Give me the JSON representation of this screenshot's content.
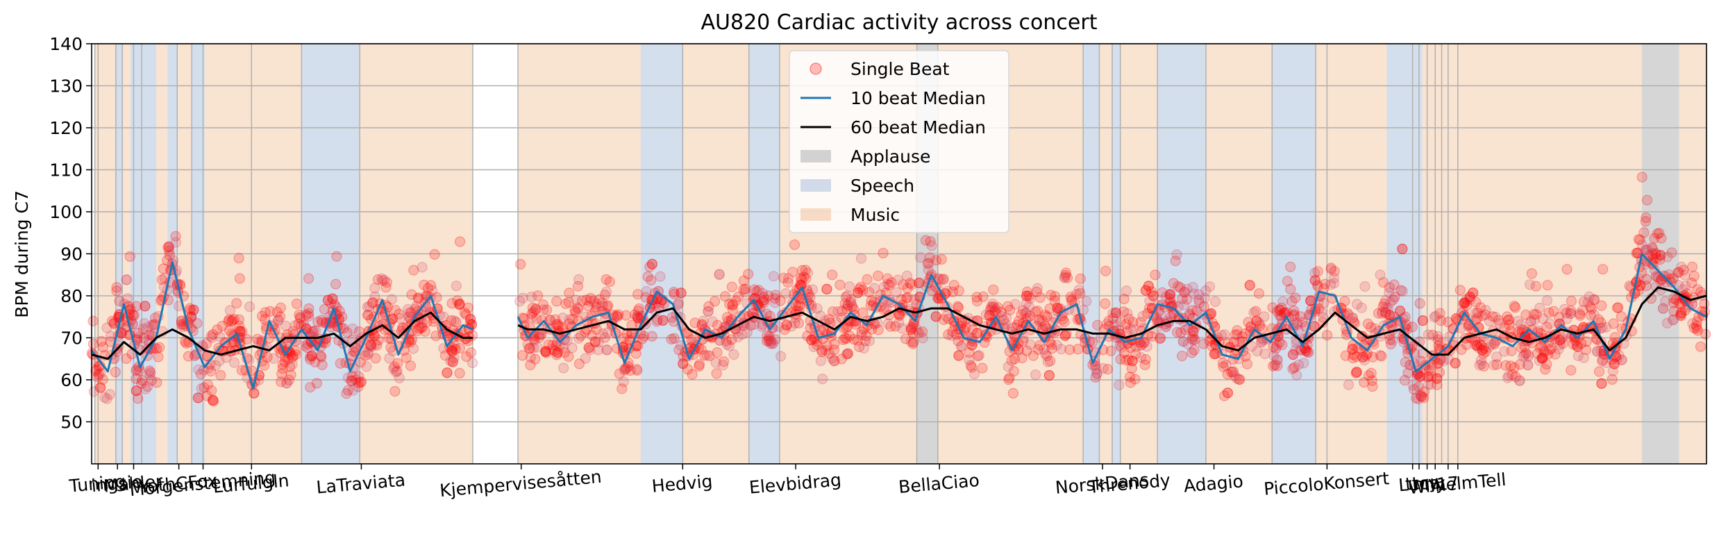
{
  "chart_data": {
    "type": "line",
    "title": "AU820 Cardiac activity across concert",
    "ylabel": "BPM during C7",
    "xlabel": "",
    "ylim": [
      40,
      140
    ],
    "xlim": [
      0,
      1000
    ],
    "yticks": [
      50,
      60,
      70,
      80,
      90,
      100,
      110,
      120,
      130,
      140
    ],
    "grid": true,
    "legend_position": "top-center",
    "colors": {
      "single_beat": "#ff0000",
      "median10": "#1f77b4",
      "median60": "#000000",
      "applause": "#c8c8c8",
      "speech": "#b0c4de",
      "music": "#f4c7a3"
    },
    "legend": [
      {
        "key": "single",
        "label": "Single Beat"
      },
      {
        "key": "median10",
        "label": "10 beat Median"
      },
      {
        "key": "median60",
        "label": "60 beat Median"
      },
      {
        "key": "applause",
        "label": "Applause"
      },
      {
        "key": "speech",
        "label": "Speech"
      },
      {
        "key": "music",
        "label": "Music"
      }
    ],
    "xtick_labels": [
      {
        "x": 4,
        "label": "Tuning"
      },
      {
        "x": 16,
        "label": "ingsie"
      },
      {
        "x": 26,
        "label": "Mahler"
      },
      {
        "x": 54,
        "label": "YothCFox"
      },
      {
        "x": 69,
        "label": "Morgenstemning"
      },
      {
        "x": 99,
        "label": "Lurfulgln"
      },
      {
        "x": 167,
        "label": "LaTraviata"
      },
      {
        "x": 266,
        "label": "Kjempervisesåtten"
      },
      {
        "x": 366,
        "label": "Hedvig"
      },
      {
        "x": 436,
        "label": "Elevbidrag"
      },
      {
        "x": 525,
        "label": "BellaCiao"
      },
      {
        "x": 626,
        "label": "NorskDans"
      },
      {
        "x": 643,
        "label": "Threnody"
      },
      {
        "x": 695,
        "label": "Adagio"
      },
      {
        "x": 765,
        "label": "PiccoloKonsert"
      },
      {
        "x": 818,
        "label": "tt"
      },
      {
        "x": 822,
        "label": "Lucy"
      },
      {
        "x": 827,
        "label": "ma"
      },
      {
        "x": 832,
        "label": "ny"
      },
      {
        "x": 840,
        "label": "17"
      },
      {
        "x": 846,
        "label": "WilhelmTell"
      }
    ],
    "regions": [
      {
        "type": "music",
        "start": 2,
        "end": 15
      },
      {
        "type": "speech",
        "start": 15,
        "end": 19
      },
      {
        "type": "music",
        "start": 19,
        "end": 24
      },
      {
        "type": "speech",
        "start": 24,
        "end": 40
      },
      {
        "type": "music",
        "start": 40,
        "end": 47
      },
      {
        "type": "speech",
        "start": 47,
        "end": 53
      },
      {
        "type": "music",
        "start": 53,
        "end": 62
      },
      {
        "type": "speech",
        "start": 62,
        "end": 70
      },
      {
        "type": "music",
        "start": 70,
        "end": 130
      },
      {
        "type": "speech",
        "start": 130,
        "end": 166
      },
      {
        "type": "music",
        "start": 166,
        "end": 236
      },
      {
        "type": "music",
        "start": 264,
        "end": 340
      },
      {
        "type": "speech",
        "start": 340,
        "end": 366
      },
      {
        "type": "music",
        "start": 366,
        "end": 407
      },
      {
        "type": "speech",
        "start": 407,
        "end": 426
      },
      {
        "type": "music",
        "start": 426,
        "end": 511
      },
      {
        "type": "applause",
        "start": 511,
        "end": 524
      },
      {
        "type": "music",
        "start": 524,
        "end": 614
      },
      {
        "type": "speech",
        "start": 614,
        "end": 624
      },
      {
        "type": "music",
        "start": 624,
        "end": 632
      },
      {
        "type": "speech",
        "start": 632,
        "end": 637
      },
      {
        "type": "music",
        "start": 637,
        "end": 660
      },
      {
        "type": "speech",
        "start": 660,
        "end": 690
      },
      {
        "type": "music",
        "start": 690,
        "end": 731
      },
      {
        "type": "speech",
        "start": 731,
        "end": 758
      },
      {
        "type": "music",
        "start": 758,
        "end": 802
      },
      {
        "type": "speech",
        "start": 802,
        "end": 824
      },
      {
        "type": "music",
        "start": 824,
        "end": 960
      },
      {
        "type": "applause",
        "start": 960,
        "end": 983
      },
      {
        "type": "music",
        "start": 983,
        "end": 1000
      }
    ],
    "vlines": [
      2,
      4,
      15,
      19,
      26,
      31,
      53,
      62,
      69,
      99,
      130,
      166,
      236,
      264,
      366,
      407,
      426,
      511,
      524,
      614,
      624,
      632,
      637,
      660,
      690,
      731,
      758,
      765,
      818,
      822,
      827,
      832,
      836,
      840,
      846
    ],
    "gaps": [
      [
        236,
        264
      ]
    ],
    "series": [
      {
        "name": "60 beat Median",
        "key": "median60",
        "x": [
          0,
          10,
          20,
          30,
          40,
          50,
          60,
          70,
          80,
          90,
          100,
          110,
          120,
          130,
          140,
          150,
          160,
          170,
          180,
          190,
          200,
          210,
          220,
          230,
          236,
          264,
          270,
          280,
          290,
          300,
          310,
          320,
          330,
          340,
          350,
          360,
          370,
          380,
          390,
          400,
          410,
          420,
          430,
          440,
          450,
          460,
          470,
          480,
          490,
          500,
          510,
          520,
          530,
          540,
          550,
          560,
          570,
          580,
          590,
          600,
          610,
          620,
          630,
          640,
          650,
          660,
          670,
          680,
          690,
          700,
          710,
          720,
          730,
          740,
          750,
          760,
          770,
          780,
          790,
          800,
          810,
          820,
          830,
          840,
          850,
          860,
          870,
          880,
          890,
          900,
          910,
          920,
          930,
          940,
          950,
          960,
          970,
          980,
          990,
          1000
        ],
        "values": [
          66,
          65,
          69,
          66,
          70,
          72,
          70,
          67,
          66,
          67,
          68,
          67,
          70,
          70,
          70,
          71,
          68,
          71,
          73,
          70,
          74,
          76,
          72,
          70,
          70,
          73,
          72,
          72,
          71,
          72,
          73,
          74,
          72,
          72,
          76,
          77,
          72,
          70,
          71,
          73,
          75,
          74,
          75,
          76,
          74,
          72,
          75,
          74,
          75,
          77,
          76,
          77,
          77,
          75,
          73,
          72,
          71,
          72,
          71,
          72,
          72,
          71,
          71,
          70,
          71,
          73,
          74,
          74,
          72,
          68,
          67,
          70,
          71,
          72,
          69,
          72,
          76,
          73,
          70,
          71,
          72,
          69,
          66,
          66,
          70,
          71,
          72,
          70,
          69,
          70,
          72,
          71,
          72,
          67,
          70,
          78,
          82,
          81,
          79,
          80
        ]
      },
      {
        "name": "10 beat Median",
        "key": "median10",
        "x": [
          0,
          10,
          20,
          30,
          40,
          50,
          60,
          70,
          80,
          90,
          100,
          110,
          120,
          130,
          140,
          150,
          160,
          170,
          180,
          190,
          200,
          210,
          220,
          230,
          236,
          264,
          270,
          280,
          290,
          300,
          310,
          320,
          330,
          340,
          350,
          360,
          370,
          380,
          390,
          400,
          410,
          420,
          430,
          440,
          450,
          460,
          470,
          480,
          490,
          500,
          510,
          520,
          530,
          540,
          550,
          560,
          570,
          580,
          590,
          600,
          610,
          620,
          630,
          640,
          650,
          660,
          670,
          680,
          690,
          700,
          710,
          720,
          730,
          740,
          750,
          760,
          770,
          780,
          790,
          800,
          810,
          820,
          830,
          840,
          850,
          860,
          870,
          880,
          890,
          900,
          910,
          920,
          930,
          940,
          950,
          960,
          970,
          980,
          990,
          1000
        ],
        "values": [
          67,
          62,
          78,
          63,
          70,
          88,
          72,
          63,
          68,
          71,
          58,
          74,
          66,
          72,
          67,
          77,
          62,
          70,
          79,
          66,
          75,
          80,
          68,
          73,
          72,
          75,
          70,
          74,
          69,
          73,
          75,
          76,
          64,
          73,
          81,
          78,
          65,
          72,
          70,
          75,
          79,
          72,
          77,
          82,
          70,
          71,
          76,
          73,
          80,
          78,
          74,
          85,
          78,
          70,
          69,
          75,
          67,
          74,
          69,
          76,
          78,
          64,
          72,
          69,
          70,
          78,
          77,
          73,
          76,
          66,
          65,
          72,
          69,
          75,
          68,
          81,
          80,
          70,
          67,
          73,
          75,
          62,
          65,
          68,
          76,
          71,
          70,
          68,
          72,
          69,
          73,
          70,
          74,
          65,
          72,
          90,
          86,
          82,
          77,
          75
        ]
      }
    ]
  }
}
